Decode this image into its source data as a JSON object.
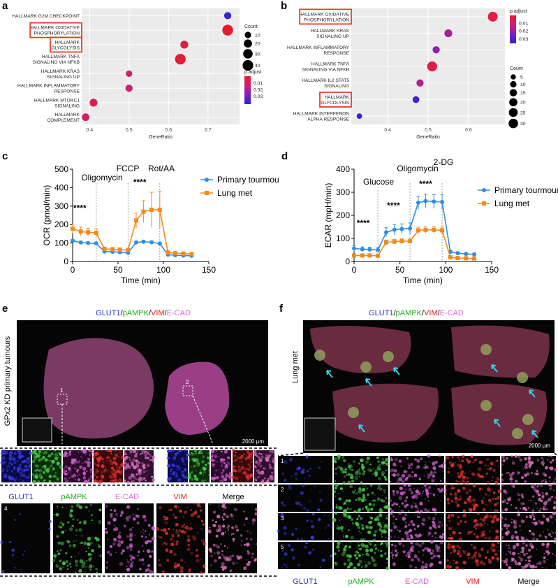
{
  "panels": {
    "a": "a",
    "b": "b",
    "c": "c",
    "d": "d",
    "e": "e",
    "f": "f"
  },
  "chart_data": [
    {
      "id": "a",
      "type": "scatter",
      "xlabel": "GeneRatio",
      "xlim": [
        0.38,
        0.78
      ],
      "xticks": [
        0.4,
        0.5,
        0.6,
        0.7
      ],
      "categories": [
        "HALLMARK G2M CHECKPOINT",
        "HALLMARK OXIDATIVE PHOSPHORYLATION",
        "HALLMARK GLYCOLYSIS",
        "HALLMARK TNFA SIGNALING VIA NFKB",
        "HALLMARK KRAS SIGNALING UP",
        "HALLMARK INFLAMMATORY RESPONSE",
        "HALLMARK MTORC1 SIGNALING",
        "HALLMARK COMPLEMENT"
      ],
      "labels": [
        [
          "HALLMARK G2M CHECKPOINT"
        ],
        [
          "HALLMARK OXIDATIVE",
          "PHOSPHORYLATION"
        ],
        [
          "HALLMARK",
          "GLYCOLYSIS"
        ],
        [
          "HALLMARK TNFA",
          "SIGNALING VIA NFKB"
        ],
        [
          "HALLMARK KRAS",
          "SIGNALING UP"
        ],
        [
          "HALLMARK INFLAMMATORY",
          "RESPONSE"
        ],
        [
          "HALLMARK MTORC1",
          "SIGNALING"
        ],
        [
          "HALLMARK",
          "COMPLEMENT"
        ]
      ],
      "highlighted": [
        1,
        2
      ],
      "points": [
        {
          "x": 0.75,
          "count": 14,
          "padj": 0.04
        },
        {
          "x": 0.75,
          "count": 42,
          "padj": 0.001
        },
        {
          "x": 0.64,
          "count": 18,
          "padj": 0.004
        },
        {
          "x": 0.63,
          "count": 40,
          "padj": 0.002
        },
        {
          "x": 0.5,
          "count": 10,
          "padj": 0.012
        },
        {
          "x": 0.5,
          "count": 14,
          "padj": 0.014
        },
        {
          "x": 0.41,
          "count": 18,
          "padj": 0.006
        },
        {
          "x": 0.39,
          "count": 16,
          "padj": 0.01
        }
      ],
      "size_legend": {
        "title": "Count",
        "values": [
          10,
          20,
          30,
          40
        ]
      },
      "color_legend": {
        "title": "p.adjust",
        "ticks": [
          "0.01",
          "0.02",
          "0.03"
        ],
        "range": [
          0.0,
          0.042
        ]
      }
    },
    {
      "id": "b",
      "type": "scatter",
      "xlabel": "GeneRatio",
      "xlim": [
        0.31,
        0.69
      ],
      "xticks": [
        0.4,
        0.5,
        0.6
      ],
      "categories": [
        "HALLMARK OXIDATIVE PHOSPHORYLATION",
        "HALLMARK KRAS SIGNALING UP",
        "HALLMARK INFLAMMATORY RESPONSE",
        "HALLMARK TNFA SIGNALING VIA NFKB",
        "HALLMARK IL2 STAT5 SIGNALING",
        "HALLMARK GLYCOLYSIS",
        "HALLMARK INTERFERON ALPHA RESPONSE"
      ],
      "labels": [
        [
          "HALLMARK OXIDATIVE",
          "PHOSPHORYLATION"
        ],
        [
          "HALLMARK KRAS",
          "SIGNALING UP"
        ],
        [
          "HALLMARK INFLAMMATORY",
          "RESPONSE"
        ],
        [
          "HALLMARK TNFA",
          "SIGNALING VIA NFKB"
        ],
        [
          "HALLMARK IL2 STAT5",
          "SIGNALING"
        ],
        [
          "HALLMARK",
          "GLYCOLYSIS"
        ],
        [
          "HALLMARK INTERFERON",
          "ALPHA RESPONSE"
        ]
      ],
      "highlighted": [
        0,
        5
      ],
      "points": [
        {
          "x": 0.66,
          "count": 32,
          "padj": 0.003
        },
        {
          "x": 0.55,
          "count": 18,
          "padj": 0.018
        },
        {
          "x": 0.52,
          "count": 14,
          "padj": 0.022
        },
        {
          "x": 0.51,
          "count": 34,
          "padj": 0.004
        },
        {
          "x": 0.48,
          "count": 14,
          "padj": 0.016
        },
        {
          "x": 0.47,
          "count": 12,
          "padj": 0.032
        },
        {
          "x": 0.33,
          "count": 6,
          "padj": 0.034
        }
      ],
      "size_legend": {
        "title": "Count",
        "values": [
          5,
          10,
          15,
          20,
          25,
          30
        ]
      },
      "color_legend": {
        "title": "p.adjust",
        "ticks": [
          "0.01",
          "0.02",
          "0.03"
        ],
        "range": [
          0.0,
          0.036
        ]
      }
    },
    {
      "id": "c",
      "type": "line",
      "xlabel": "Time (min)",
      "ylabel": "OCR (pmol/min)",
      "xlim": [
        0,
        150
      ],
      "ylim": [
        0,
        500
      ],
      "xticks": [
        0,
        50,
        100,
        150
      ],
      "yticks": [
        0,
        100,
        200,
        300,
        400,
        500
      ],
      "x": [
        0,
        9,
        17,
        26,
        35,
        44,
        52,
        61,
        70,
        78,
        87,
        96,
        105,
        113,
        122,
        131
      ],
      "series": [
        {
          "name": "Primary tourmour",
          "color": "#2f8fe0",
          "marker": "circle",
          "values": [
            112,
            103,
            100,
            98,
            54,
            53,
            50,
            47,
            103,
            107,
            104,
            97,
            37,
            34,
            32,
            31
          ],
          "errors": [
            8,
            8,
            7,
            7,
            6,
            6,
            5,
            5,
            8,
            8,
            8,
            8,
            5,
            5,
            5,
            5
          ]
        },
        {
          "name": "Lung met",
          "color": "#f28a1e",
          "marker": "square",
          "values": [
            178,
            162,
            158,
            155,
            68,
            66,
            64,
            62,
            222,
            270,
            280,
            280,
            48,
            45,
            43,
            40
          ],
          "errors": [
            25,
            25,
            22,
            22,
            10,
            10,
            10,
            10,
            40,
            60,
            95,
            100,
            10,
            8,
            8,
            8
          ]
        }
      ],
      "vlines": [
        {
          "x": 26,
          "label": "Oligomycin"
        },
        {
          "x": 61,
          "label": "FCCP"
        },
        {
          "x": 96,
          "label": "Rot/AA"
        }
      ],
      "annotations": [
        {
          "x": 8,
          "y": 275,
          "text": "****"
        },
        {
          "x": 74,
          "y": 415,
          "text": "****"
        }
      ]
    },
    {
      "id": "d",
      "type": "line",
      "xlabel": "Time (min)",
      "ylabel": "ECAR (mpH/min)",
      "xlim": [
        0,
        150
      ],
      "ylim": [
        0,
        400
      ],
      "xticks": [
        0,
        50,
        100,
        150
      ],
      "yticks": [
        0,
        100,
        200,
        300,
        400
      ],
      "x": [
        0,
        9,
        17,
        26,
        35,
        44,
        52,
        61,
        70,
        78,
        87,
        96,
        105,
        113,
        122,
        131
      ],
      "series": [
        {
          "name": "Primary tourmour",
          "color": "#2f8fe0",
          "marker": "circle",
          "values": [
            57,
            53,
            52,
            50,
            126,
            138,
            141,
            143,
            255,
            262,
            260,
            258,
            42,
            36,
            33,
            31
          ],
          "errors": [
            12,
            10,
            10,
            10,
            20,
            22,
            22,
            24,
            28,
            30,
            30,
            32,
            6,
            6,
            5,
            5
          ]
        },
        {
          "name": "Lung met",
          "color": "#f28a1e",
          "marker": "square",
          "values": [
            26,
            26,
            26,
            25,
            83,
            86,
            88,
            88,
            135,
            137,
            137,
            135,
            18,
            15,
            14,
            13
          ],
          "errors": [
            4,
            4,
            4,
            4,
            10,
            10,
            10,
            10,
            14,
            14,
            14,
            14,
            4,
            4,
            3,
            3
          ]
        }
      ],
      "vlines": [
        {
          "x": 26,
          "label": "Glucose"
        },
        {
          "x": 61,
          "label": "Oligomycin"
        },
        {
          "x": 96,
          "label": "2-DG"
        }
      ],
      "annotations": [
        {
          "x": 10,
          "y": 155,
          "text": "****"
        },
        {
          "x": 43,
          "y": 230,
          "text": "****"
        },
        {
          "x": 78,
          "y": 325,
          "text": "****"
        }
      ]
    }
  ],
  "panel_e": {
    "title_parts": [
      {
        "text": "GLUT1",
        "color": "#2b33c9"
      },
      {
        "text": "/",
        "color": "#000"
      },
      {
        "text": "pAMPK",
        "color": "#22b022"
      },
      {
        "text": "/",
        "color": "#000"
      },
      {
        "text": "VIM",
        "color": "#e11b1b"
      },
      {
        "text": "/",
        "color": "#000"
      },
      {
        "text": "E-CAD",
        "color": "#d66bd6"
      }
    ],
    "side_label": "GPx2 KD primary tumours",
    "scale": "2000 µm",
    "roi": [
      "1",
      "2"
    ],
    "inset_index": "4",
    "channels": [
      {
        "label": "GLUT1",
        "color": "#2b33c9"
      },
      {
        "label": "pAMPK",
        "color": "#22b022"
      },
      {
        "label": "E-CAD",
        "color": "#d66bd6"
      },
      {
        "label": "VIM",
        "color": "#e11b1b"
      },
      {
        "label": "Merge",
        "color": "#000000"
      }
    ]
  },
  "panel_f": {
    "title_parts": [
      {
        "text": "GLUT1",
        "color": "#2b33c9"
      },
      {
        "text": "/",
        "color": "#000"
      },
      {
        "text": "pAMPK",
        "color": "#22b022"
      },
      {
        "text": "/",
        "color": "#000"
      },
      {
        "text": "VIM",
        "color": "#e11b1b"
      },
      {
        "text": "/",
        "color": "#000"
      },
      {
        "text": "E-CAD",
        "color": "#d66bd6"
      }
    ],
    "side_label": "Lung met",
    "scale": "2000 µm",
    "row_labels": [
      "1",
      "2",
      "3",
      "5"
    ],
    "channels": [
      {
        "label": "GLUT1",
        "color": "#2b33c9"
      },
      {
        "label": "pAMPK",
        "color": "#22b022"
      },
      {
        "label": "E-CAD",
        "color": "#d66bd6"
      },
      {
        "label": "VIM",
        "color": "#e11b1b"
      },
      {
        "label": "Merge",
        "color": "#000000"
      }
    ]
  }
}
